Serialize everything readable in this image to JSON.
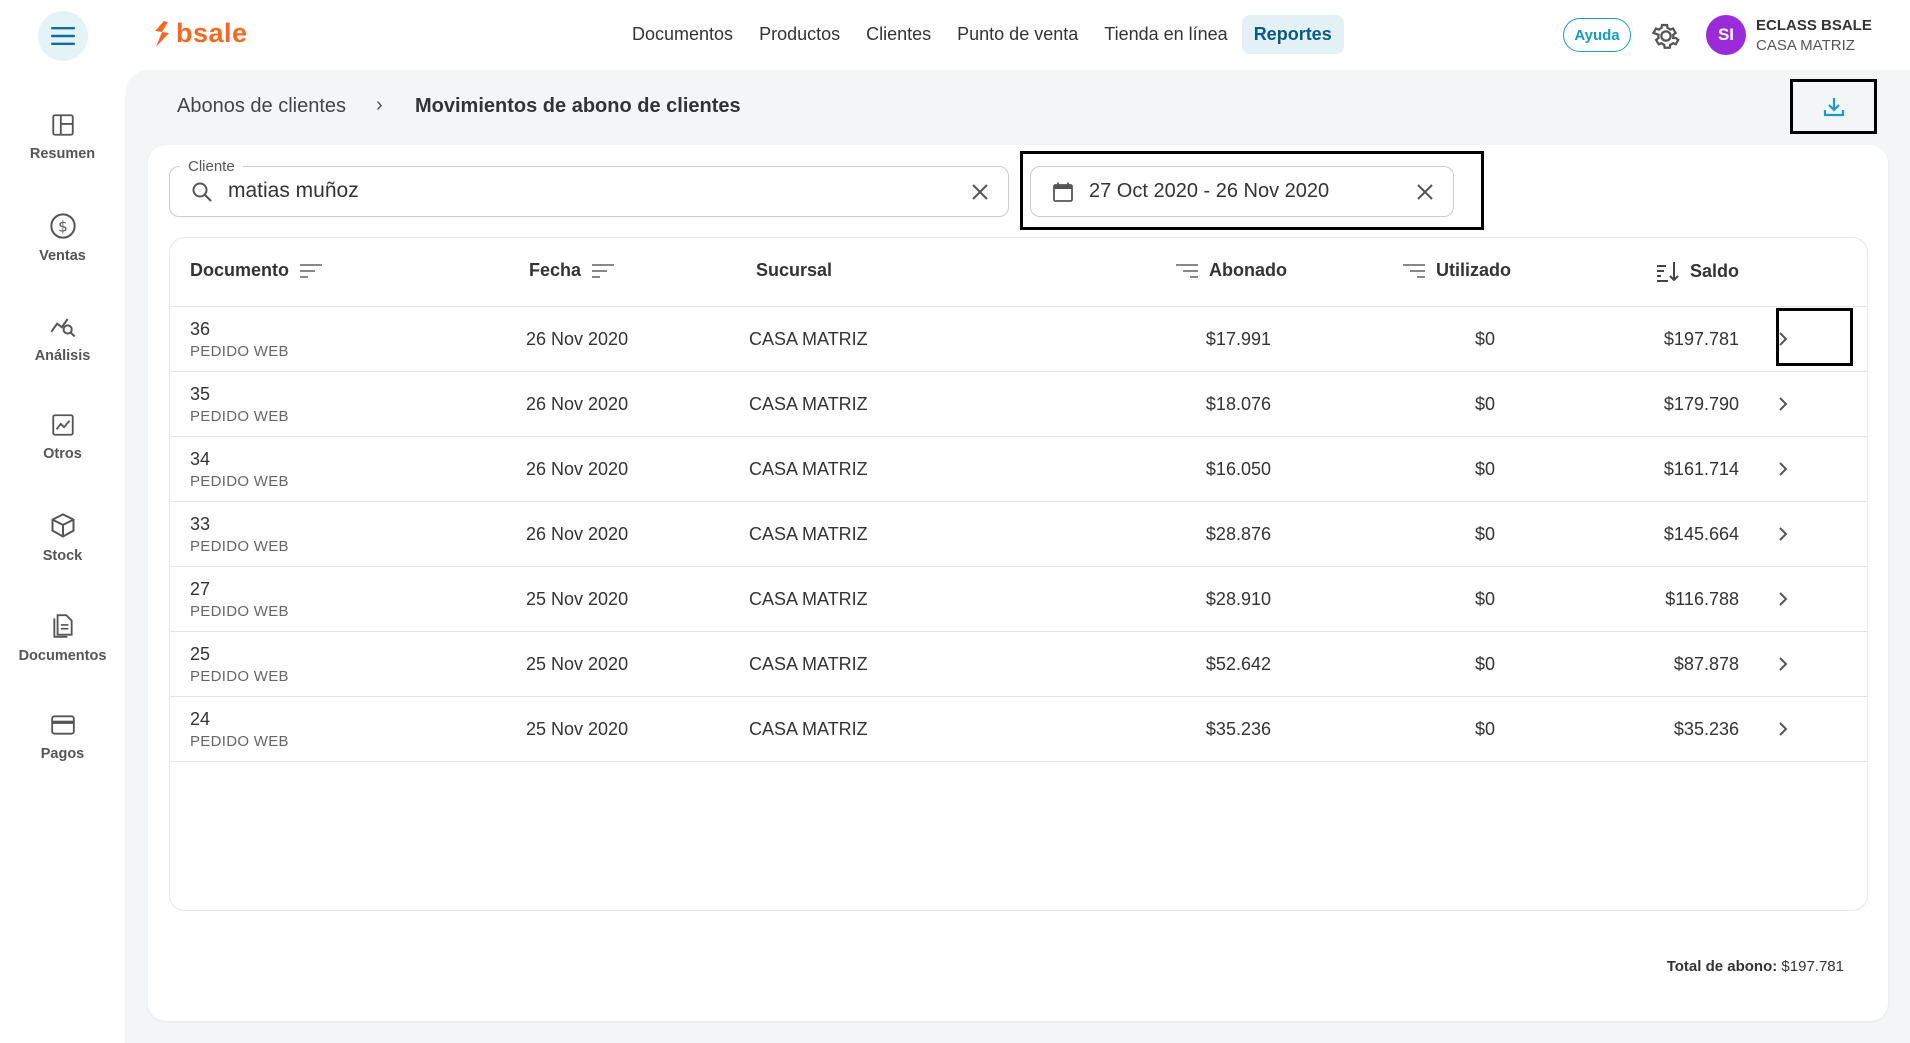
{
  "brand": {
    "logo_text": "bsale",
    "accent": "#f26a22"
  },
  "nav": {
    "items": [
      "Documentos",
      "Productos",
      "Clientes",
      "Punto de venta",
      "Tienda en línea",
      "Reportes"
    ],
    "active": "Reportes"
  },
  "header": {
    "help_label": "Ayuda",
    "user_avatar": "SI",
    "user_name": "ECLASS BSALE",
    "user_branch": "CASA MATRIZ"
  },
  "sidebar": {
    "items": [
      {
        "label": "Resumen",
        "icon": "dashboard-icon"
      },
      {
        "label": "Ventas",
        "icon": "dollar-icon"
      },
      {
        "label": "Análisis",
        "icon": "analysis-icon"
      },
      {
        "label": "Otros",
        "icon": "chart-icon"
      },
      {
        "label": "Stock",
        "icon": "box-icon"
      },
      {
        "label": "Documentos",
        "icon": "document-icon"
      },
      {
        "label": "Pagos",
        "icon": "card-icon"
      }
    ]
  },
  "breadcrumb": {
    "parent": "Abonos de clientes",
    "separator": "›",
    "current": "Movimientos de abono de clientes"
  },
  "filters": {
    "client_label": "Cliente",
    "client_value": "matias muñoz",
    "date_range": "27 Oct 2020 - 26 Nov 2020"
  },
  "table": {
    "headers": {
      "documento": "Documento",
      "fecha": "Fecha",
      "sucursal": "Sucursal",
      "abonado": "Abonado",
      "utilizado": "Utilizado",
      "saldo": "Saldo"
    },
    "rows": [
      {
        "num": "36",
        "type": "PEDIDO WEB",
        "fecha": "26 Nov 2020",
        "sucursal": "CASA MATRIZ",
        "abonado": "$17.991",
        "utilizado": "$0",
        "saldo": "$197.781"
      },
      {
        "num": "35",
        "type": "PEDIDO WEB",
        "fecha": "26 Nov 2020",
        "sucursal": "CASA MATRIZ",
        "abonado": "$18.076",
        "utilizado": "$0",
        "saldo": "$179.790"
      },
      {
        "num": "34",
        "type": "PEDIDO WEB",
        "fecha": "26 Nov 2020",
        "sucursal": "CASA MATRIZ",
        "abonado": "$16.050",
        "utilizado": "$0",
        "saldo": "$161.714"
      },
      {
        "num": "33",
        "type": "PEDIDO WEB",
        "fecha": "26 Nov 2020",
        "sucursal": "CASA MATRIZ",
        "abonado": "$28.876",
        "utilizado": "$0",
        "saldo": "$145.664"
      },
      {
        "num": "27",
        "type": "PEDIDO WEB",
        "fecha": "25 Nov 2020",
        "sucursal": "CASA MATRIZ",
        "abonado": "$28.910",
        "utilizado": "$0",
        "saldo": "$116.788"
      },
      {
        "num": "25",
        "type": "PEDIDO WEB",
        "fecha": "25 Nov 2020",
        "sucursal": "CASA MATRIZ",
        "abonado": "$52.642",
        "utilizado": "$0",
        "saldo": "$87.878"
      },
      {
        "num": "24",
        "type": "PEDIDO WEB",
        "fecha": "25 Nov 2020",
        "sucursal": "CASA MATRIZ",
        "abonado": "$35.236",
        "utilizado": "$0",
        "saldo": "$35.236"
      }
    ]
  },
  "footer": {
    "total_label": "Total de abono:",
    "total_value": "$197.781"
  }
}
